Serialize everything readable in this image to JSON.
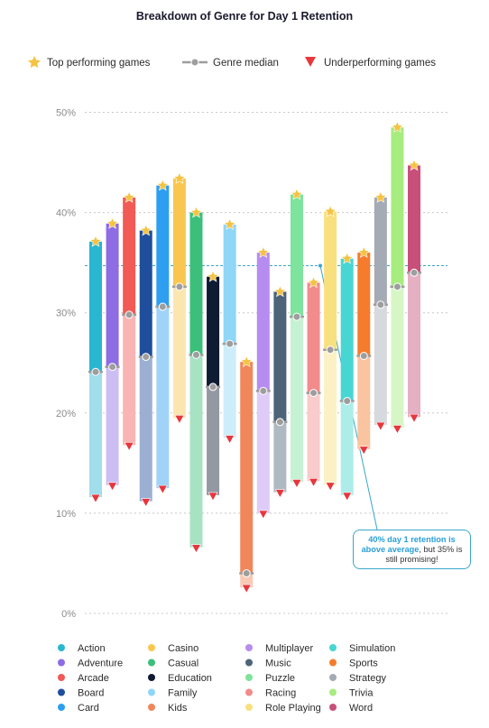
{
  "legend": {
    "top": "Top performing games",
    "median": "Genre median",
    "under": "Underperforming games"
  },
  "callout": {
    "highlight": "40% day 1 retention is above average",
    "rest": ", but 35% is still promising!"
  },
  "colors": {
    "star": "#f5c342",
    "median_marker": "#9e9e9e",
    "under_marker": "#e8363d",
    "reference_line": "#3aa7c9",
    "grid": "#c8c8c8"
  },
  "chart_data": {
    "type": "range-bar",
    "title": "Breakdown of Genre for Day 1 Retention",
    "y_unit": "%",
    "ylim": [
      0,
      50
    ],
    "yticks": [
      0,
      10,
      20,
      30,
      40,
      50
    ],
    "ytick_labels": [
      "0%",
      "10%",
      "20%",
      "30%",
      "40%",
      "50%"
    ],
    "grid": true,
    "reference_line": 34.7,
    "legend_position": "top",
    "categories": [
      "Action",
      "Adventure",
      "Arcade",
      "Board",
      "Card",
      "Casino",
      "Casual",
      "Education",
      "Family",
      "Kids",
      "Multiplayer",
      "Music",
      "Puzzle",
      "Racing",
      "Role Playing",
      "Simulation",
      "Sports",
      "Strategy",
      "Trivia",
      "Word"
    ],
    "category_colors": [
      "#29b6d1",
      "#8e6ce3",
      "#f25a55",
      "#1f4e9c",
      "#2e9ef0",
      "#f9c74f",
      "#3bbf7a",
      "#0f1a33",
      "#8fd6f7",
      "#f0875a",
      "#b78cf0",
      "#4d6378",
      "#7ee39c",
      "#f28b8b",
      "#f9e07f",
      "#47d6d1",
      "#f47c2c",
      "#a4abb4",
      "#a7ec7e",
      "#c84f7a"
    ],
    "series": [
      {
        "name": "Top performing games",
        "values": [
          37.1,
          38.9,
          41.5,
          38.2,
          42.7,
          43.4,
          40.0,
          33.6,
          38.8,
          25.1,
          36.0,
          32.1,
          41.8,
          33.0,
          40.1,
          35.4,
          36.0,
          41.5,
          48.5,
          44.7
        ]
      },
      {
        "name": "Genre median",
        "values": [
          24.1,
          24.6,
          29.8,
          25.6,
          30.6,
          32.6,
          25.8,
          22.6,
          26.9,
          4.0,
          22.2,
          19.1,
          29.6,
          22.0,
          26.3,
          21.2,
          25.7,
          30.8,
          32.6,
          34.0
        ]
      },
      {
        "name": "Underperforming games",
        "values": [
          11.6,
          12.8,
          16.8,
          11.2,
          12.5,
          19.5,
          6.6,
          11.8,
          17.5,
          2.6,
          10.0,
          12.1,
          13.1,
          13.2,
          12.8,
          11.8,
          16.4,
          18.8,
          18.5,
          19.6
        ]
      }
    ]
  }
}
